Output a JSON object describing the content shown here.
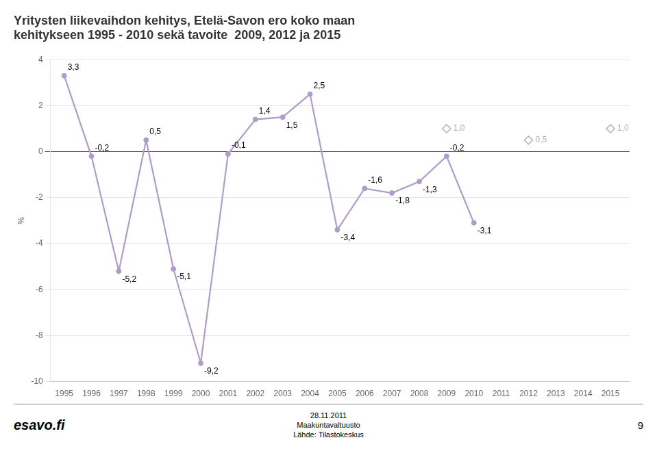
{
  "chart_data": {
    "type": "line",
    "title": [
      "Yritysten liikevaihdon kehitys, Etelä-Savon ero koko maan",
      "kehitykseen 1995 - 2010 sekä tavoite  2009, 2012 ja 2015"
    ],
    "ylabel": "%",
    "annotations": [
      "esavo.fi",
      "28.11.2011",
      "Maakuntavaltuusto",
      "Lähde: Tilastokeskus",
      "9"
    ],
    "series": [
      {
        "x": [
          1995,
          1996,
          1997,
          1998,
          1999,
          2000,
          2001,
          2002,
          2003,
          2004,
          2005,
          2006,
          2007,
          2008,
          2009,
          2010
        ],
        "values": [
          3.3,
          -0.2,
          -5.2,
          0.5,
          -5.1,
          -9.2,
          -0.1,
          1.4,
          1.5,
          2.5,
          -3.4,
          -1.6,
          -1.8,
          -1.3,
          -0.2,
          -3.1
        ],
        "value_labels": [
          "3,3",
          "-0,2",
          "-5,2",
          "0,5",
          "-5,1",
          "-9,2",
          "-0,1",
          "1,4",
          "1,5",
          "2,5",
          "-3,4",
          "-1,6",
          "-1,8",
          "-1,3",
          "-0,2",
          "-3,1"
        ],
        "color": "#b09cc8",
        "marker": "circle",
        "line_style": "solid"
      },
      {
        "x": [
          2009,
          2012,
          2015
        ],
        "values": [
          1.0,
          0.5,
          1.0
        ],
        "value_labels": [
          "1,0",
          "0,5",
          "1,0"
        ],
        "color": "#b0b0b0",
        "marker": "diamond",
        "line_style": "none"
      }
    ],
    "xlim": [
      1994.5,
      2015.7
    ],
    "xticks": [
      1995,
      1996,
      1997,
      1998,
      1999,
      2000,
      2001,
      2002,
      2003,
      2004,
      2005,
      2006,
      2007,
      2008,
      2009,
      2010,
      2011,
      2012,
      2013,
      2014,
      2015
    ],
    "ylim": [
      -10,
      4
    ],
    "yticks": [
      -10,
      -8,
      -6,
      -4,
      -2,
      0,
      2,
      4
    ],
    "grid": "y",
    "data_labels": true
  }
}
